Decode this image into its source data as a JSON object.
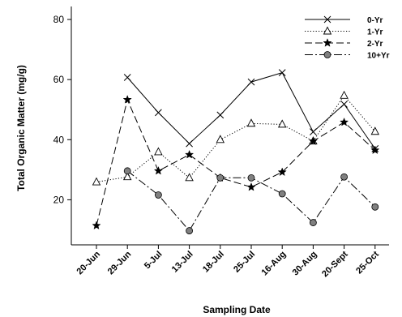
{
  "chart_data": {
    "type": "line",
    "title": "",
    "xlabel": "Sampling Date",
    "ylabel": "Total Organic Matter (mg/g)",
    "categories": [
      "20-Jun",
      "29-Jun",
      "5-Jul",
      "13-Jul",
      "18-Jul",
      "25-Jul",
      "16-Aug",
      "30-Aug",
      "20-Sept",
      "25-Oct"
    ],
    "ylim": [
      5,
      82
    ],
    "yticks": [
      "20",
      "40",
      "60",
      "80"
    ],
    "ytick_values": [
      20,
      40,
      60,
      80
    ],
    "grid": false,
    "legend_position": "top-right",
    "series": [
      {
        "name": "0-Yr",
        "marker": "x",
        "dash": "solid",
        "values": [
          null,
          60.7,
          49.0,
          38.7,
          48.2,
          59.2,
          62.3,
          42.6,
          51.8,
          37.0
        ]
      },
      {
        "name": "1-Yr",
        "marker": "triangle",
        "dash": "dotted",
        "values": [
          25.9,
          27.6,
          35.9,
          27.3,
          40.0,
          45.4,
          45.1,
          39.5,
          54.7,
          42.7
        ]
      },
      {
        "name": "2-Yr",
        "marker": "star",
        "dash": "dashed",
        "values": [
          11.4,
          53.3,
          29.6,
          35.0,
          27.3,
          24.2,
          29.2,
          39.5,
          45.8,
          36.5
        ]
      },
      {
        "name": "10+Yr",
        "marker": "circle",
        "dash": "dashdot",
        "values": [
          null,
          29.6,
          21.6,
          9.7,
          27.3,
          27.3,
          22.0,
          12.4,
          27.6,
          17.6
        ]
      }
    ]
  }
}
